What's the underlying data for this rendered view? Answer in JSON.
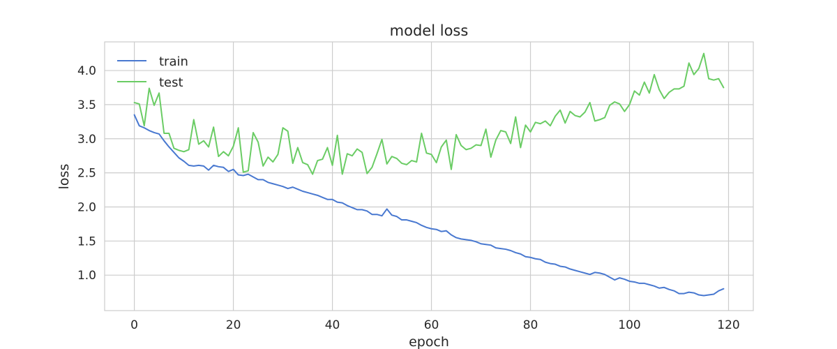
{
  "chart_data": {
    "type": "line",
    "title": "model loss",
    "xlabel": "epoch",
    "ylabel": "loss",
    "xlim": [
      -6,
      125
    ],
    "ylim": [
      0.48,
      4.42
    ],
    "xticks": [
      0,
      20,
      40,
      60,
      80,
      100,
      120
    ],
    "yticks": [
      1.0,
      1.5,
      2.0,
      2.5,
      3.0,
      3.5,
      4.0
    ],
    "grid": true,
    "legend_position": "top-left",
    "series": [
      {
        "name": "train",
        "color": "#4878d0",
        "values": [
          3.35,
          3.19,
          3.16,
          3.12,
          3.09,
          3.07,
          2.97,
          2.88,
          2.8,
          2.72,
          2.67,
          2.61,
          2.6,
          2.61,
          2.6,
          2.54,
          2.61,
          2.59,
          2.58,
          2.52,
          2.55,
          2.47,
          2.46,
          2.48,
          2.44,
          2.4,
          2.4,
          2.36,
          2.34,
          2.32,
          2.3,
          2.27,
          2.29,
          2.26,
          2.23,
          2.21,
          2.19,
          2.17,
          2.14,
          2.11,
          2.11,
          2.07,
          2.06,
          2.02,
          1.99,
          1.96,
          1.96,
          1.94,
          1.89,
          1.89,
          1.87,
          1.97,
          1.88,
          1.86,
          1.81,
          1.81,
          1.79,
          1.77,
          1.73,
          1.7,
          1.68,
          1.67,
          1.64,
          1.65,
          1.59,
          1.55,
          1.53,
          1.52,
          1.51,
          1.49,
          1.46,
          1.45,
          1.44,
          1.4,
          1.39,
          1.38,
          1.36,
          1.33,
          1.31,
          1.27,
          1.26,
          1.24,
          1.23,
          1.19,
          1.17,
          1.16,
          1.13,
          1.12,
          1.09,
          1.07,
          1.05,
          1.03,
          1.01,
          1.04,
          1.03,
          1.01,
          0.97,
          0.93,
          0.96,
          0.94,
          0.91,
          0.9,
          0.88,
          0.88,
          0.86,
          0.84,
          0.81,
          0.82,
          0.79,
          0.77,
          0.73,
          0.73,
          0.75,
          0.74,
          0.71,
          0.7,
          0.71,
          0.72,
          0.77,
          0.8
        ]
      },
      {
        "name": "test",
        "color": "#6acc64",
        "values": [
          3.53,
          3.51,
          3.19,
          3.74,
          3.49,
          3.67,
          3.08,
          3.08,
          2.86,
          2.83,
          2.81,
          2.84,
          3.28,
          2.92,
          2.97,
          2.88,
          3.17,
          2.74,
          2.81,
          2.75,
          2.89,
          3.16,
          2.51,
          2.53,
          3.09,
          2.95,
          2.6,
          2.73,
          2.66,
          2.77,
          3.16,
          3.11,
          2.64,
          2.87,
          2.65,
          2.62,
          2.48,
          2.68,
          2.7,
          2.87,
          2.61,
          3.05,
          2.48,
          2.78,
          2.75,
          2.85,
          2.8,
          2.49,
          2.58,
          2.78,
          2.99,
          2.63,
          2.74,
          2.71,
          2.64,
          2.62,
          2.68,
          2.66,
          3.08,
          2.79,
          2.77,
          2.65,
          2.88,
          2.98,
          2.55,
          3.06,
          2.9,
          2.84,
          2.86,
          2.91,
          2.9,
          3.14,
          2.73,
          2.98,
          3.12,
          3.1,
          2.93,
          3.32,
          2.87,
          3.2,
          3.1,
          3.24,
          3.22,
          3.26,
          3.19,
          3.33,
          3.42,
          3.23,
          3.4,
          3.34,
          3.32,
          3.39,
          3.53,
          3.26,
          3.28,
          3.31,
          3.49,
          3.54,
          3.51,
          3.4,
          3.5,
          3.7,
          3.64,
          3.83,
          3.67,
          3.94,
          3.72,
          3.59,
          3.68,
          3.73,
          3.73,
          3.77,
          4.11,
          3.94,
          4.03,
          4.25,
          3.88,
          3.86,
          3.88,
          3.75
        ]
      }
    ]
  }
}
